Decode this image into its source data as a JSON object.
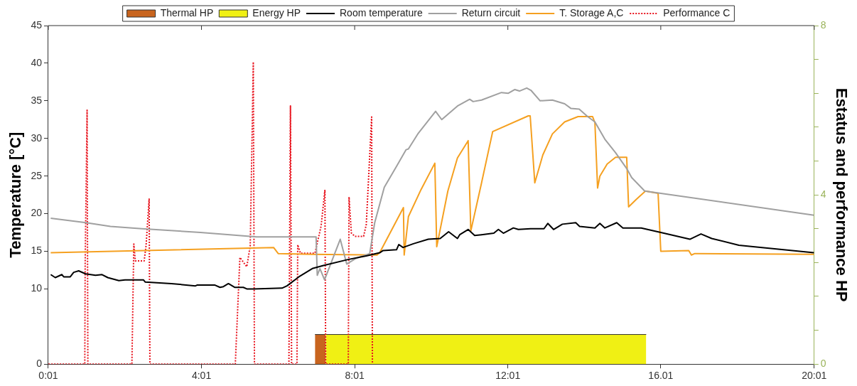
{
  "chart_data": {
    "type": "line",
    "ylabel": "Temperature [°C]",
    "y2label": "Estatus and performance HP",
    "xlim": [
      0.017,
      20.017
    ],
    "xticks": [
      {
        "value": 0.017,
        "label": "0:01"
      },
      {
        "value": 4.017,
        "label": "4:01"
      },
      {
        "value": 8.017,
        "label": "8:01"
      },
      {
        "value": 12.017,
        "label": "12:01"
      },
      {
        "value": 16.01,
        "label": "16.01"
      },
      {
        "value": 20.017,
        "label": "20:01"
      }
    ],
    "ylim": [
      0,
      45
    ],
    "yticks": [
      0,
      10,
      15,
      20,
      25,
      30,
      35,
      40,
      45
    ],
    "y2lim": [
      0,
      8
    ],
    "y2ticks": [
      0,
      {
        "value": 0.8,
        "label": null
      },
      {
        "value": 1.6,
        "label": null
      },
      {
        "value": 2.4,
        "label": null
      },
      {
        "value": 3.2,
        "label": null
      },
      4,
      {
        "value": 4.8,
        "label": null
      },
      {
        "value": 5.6,
        "label": null
      },
      {
        "value": 6.4,
        "label": null
      },
      {
        "value": 7.2,
        "label": null
      },
      8
    ],
    "grid": false,
    "legend": "top",
    "series": [
      {
        "name": "Thermal HP",
        "type": "area",
        "axis": "y2",
        "color": "#c8641e",
        "x": [
          6.98,
          7.26
        ],
        "values": [
          0.7,
          0.7
        ]
      },
      {
        "name": "Energy HP",
        "type": "area",
        "axis": "y2",
        "color": "#f0f014",
        "x": [
          7.26,
          15.63
        ],
        "values": [
          0.7,
          0.7
        ]
      },
      {
        "name": "Room temperature",
        "color": "#000000",
        "x": [
          0.08,
          0.2,
          0.37,
          0.42,
          0.59,
          0.68,
          0.81,
          0.99,
          1.25,
          1.42,
          1.57,
          1.86,
          2.02,
          2.5,
          2.55,
          3.23,
          3.86,
          3.9,
          4.37,
          4.5,
          4.59,
          4.72,
          4.89,
          5.11,
          5.2,
          5.38,
          6.12,
          6.25,
          6.56,
          6.91,
          7.2,
          7.84,
          8.34,
          8.67,
          8.76,
          9.11,
          9.17,
          9.28,
          9.55,
          9.94,
          10.25,
          10.47,
          10.7,
          10.76,
          10.98,
          11.15,
          11.33,
          11.65,
          11.77,
          11.9,
          12.16,
          12.29,
          12.61,
          12.96,
          13.06,
          13.21,
          13.44,
          13.79,
          13.89,
          14.29,
          14.42,
          14.55,
          14.86,
          15.02,
          15.5,
          16.01,
          16.77,
          17.06,
          17.34,
          18.05,
          18.42,
          20.01
        ],
        "values": [
          11.9,
          11.5,
          11.9,
          11.6,
          11.6,
          12.2,
          12.4,
          12.0,
          11.8,
          11.9,
          11.5,
          11.1,
          11.2,
          11.2,
          10.9,
          10.7,
          10.4,
          10.5,
          10.5,
          10.2,
          10.3,
          10.7,
          10.2,
          10.2,
          10.0,
          10.0,
          10.1,
          10.4,
          11.6,
          12.7,
          13.1,
          13.9,
          14.4,
          14.8,
          15.1,
          15.2,
          15.9,
          15.5,
          16.0,
          16.6,
          16.7,
          17.6,
          16.7,
          17.2,
          17.9,
          17.1,
          17.2,
          17.4,
          17.9,
          17.4,
          18.1,
          17.9,
          18.0,
          18.0,
          18.7,
          17.9,
          18.6,
          18.8,
          18.3,
          18.1,
          18.7,
          18.1,
          18.8,
          18.1,
          18.1,
          17.5,
          16.6,
          17.3,
          16.7,
          15.8,
          15.6,
          14.8
        ]
      },
      {
        "name": "Return circuit",
        "color": "#a0a0a0",
        "x": [
          0.08,
          1.0,
          1.64,
          2.46,
          3.99,
          5.46,
          7.01,
          7.04,
          7.11,
          7.23,
          7.64,
          7.81,
          8.03,
          8.41,
          8.54,
          8.79,
          9.11,
          9.36,
          9.42,
          9.68,
          10.13,
          10.29,
          10.7,
          11.02,
          11.11,
          11.33,
          11.85,
          12.03,
          12.2,
          12.32,
          12.51,
          12.62,
          12.86,
          13.18,
          13.5,
          13.66,
          13.88,
          14.1,
          14.29,
          14.55,
          14.83,
          15.12,
          15.25,
          15.59,
          20.01
        ],
        "values": [
          19.4,
          18.8,
          18.3,
          18.0,
          17.5,
          16.9,
          16.9,
          11.8,
          12.7,
          11.2,
          16.6,
          13.3,
          14.0,
          14.7,
          18.8,
          23.5,
          26.3,
          28.5,
          28.6,
          30.7,
          33.6,
          32.5,
          34.3,
          35.2,
          34.9,
          35.1,
          36.1,
          36.0,
          36.5,
          36.3,
          36.7,
          36.4,
          35.0,
          35.1,
          34.6,
          34.0,
          33.9,
          32.9,
          32.2,
          29.9,
          28.1,
          26.0,
          24.8,
          23.0,
          19.8
        ]
      },
      {
        "name": "T. Storage A,C",
        "color": "#f5a020",
        "x": [
          0.08,
          5.9,
          6.02,
          6.9,
          8.6,
          8.67,
          9.29,
          9.31,
          9.42,
          9.75,
          10.11,
          10.16,
          10.45,
          10.7,
          10.98,
          11.05,
          11.33,
          11.62,
          12.55,
          12.6,
          12.72,
          12.93,
          13.18,
          13.5,
          13.85,
          14.23,
          14.29,
          14.36,
          14.42,
          14.61,
          14.83,
          15.12,
          15.17,
          15.37,
          15.61,
          15.94,
          16.01,
          16.74,
          16.81,
          16.9,
          20.01
        ],
        "values": [
          14.8,
          15.5,
          14.7,
          14.6,
          14.5,
          14.8,
          20.8,
          14.5,
          19.6,
          23.2,
          26.7,
          15.6,
          23.0,
          27.4,
          29.7,
          17.7,
          24.1,
          30.9,
          33.0,
          33.0,
          24.1,
          27.8,
          30.6,
          32.2,
          32.9,
          32.9,
          32.1,
          23.4,
          25.0,
          26.6,
          27.5,
          27.5,
          20.9,
          21.9,
          23.0,
          22.7,
          15.0,
          15.1,
          14.5,
          14.7,
          14.6
        ]
      },
      {
        "name": "Performance C",
        "color": "#e8141e",
        "axis": "y2",
        "line_style": "dotted",
        "x": [
          0.02,
          0.97,
          0.98,
          1.03,
          1.05,
          2.2,
          2.25,
          2.29,
          2.52,
          2.57,
          2.65,
          2.67,
          4.9,
          5.02,
          5.2,
          5.29,
          5.37,
          5.4,
          6.3,
          6.34,
          6.37,
          6.51,
          6.53,
          6.6,
          6.98,
          7.14,
          7.24,
          7.26,
          7.85,
          7.87,
          7.93,
          8.02,
          8.25,
          8.32,
          8.46,
          8.48
        ],
        "values": [
          0,
          0,
          2.4,
          6.0,
          0,
          0,
          2.84,
          2.44,
          2.44,
          2.8,
          3.9,
          0,
          0,
          2.52,
          2.3,
          2.8,
          7.14,
          0,
          0,
          6.1,
          0,
          0,
          2.82,
          2.62,
          2.62,
          3.26,
          4.12,
          0,
          0,
          3.95,
          3.1,
          3.02,
          3.02,
          3.3,
          5.84,
          0
        ]
      }
    ]
  }
}
